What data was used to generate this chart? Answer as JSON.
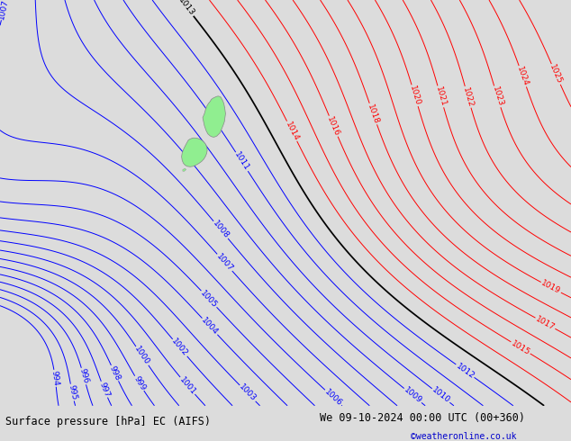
{
  "title_left": "Surface pressure [hPa] EC (AIFS)",
  "title_right": "We 09-10-2024 00:00 UTC (00+360)",
  "copyright": "©weatheronline.co.uk",
  "bg_color": "#dcdcdc",
  "fig_width": 6.34,
  "fig_height": 4.9,
  "dpi": 100,
  "bottom_bar_color": "#e8e8e8",
  "title_fontsize": 8.5,
  "copyright_color": "#0000cc",
  "red_contour_color": "#ff0000",
  "blue_contour_color": "#0000ff",
  "black_contour_color": "#000000",
  "land_color_low": "#00cc00",
  "land_color_high": "#ffff00",
  "sea_color": "#dcdcdc",
  "contour_lw": 0.7,
  "label_fontsize": 6.5,
  "nz_color": "#90ee90",
  "nz_edge": "#888888",
  "nz_lw": 0.5,
  "blue_levels": [
    994,
    995,
    996,
    997,
    998,
    999,
    1000,
    1001,
    1002,
    1003,
    1004,
    1005,
    1006,
    1007,
    1008,
    1009,
    1010,
    1011,
    1012
  ],
  "red_levels": [
    1014,
    1015,
    1016,
    1017,
    1018,
    1019,
    1020,
    1021,
    1022,
    1023,
    1024,
    1025
  ],
  "black_levels": [
    1013
  ],
  "nz_north_island": {
    "x": [
      0.355,
      0.358,
      0.36,
      0.362,
      0.365,
      0.368,
      0.37,
      0.373,
      0.376,
      0.379,
      0.382,
      0.385,
      0.387,
      0.388,
      0.39,
      0.392,
      0.393,
      0.394,
      0.395,
      0.394,
      0.393,
      0.391,
      0.389,
      0.387,
      0.385,
      0.382,
      0.38,
      0.377,
      0.374,
      0.371,
      0.368,
      0.364,
      0.361,
      0.358,
      0.355
    ],
    "y": [
      0.71,
      0.72,
      0.73,
      0.738,
      0.745,
      0.75,
      0.755,
      0.758,
      0.76,
      0.762,
      0.763,
      0.762,
      0.76,
      0.757,
      0.752,
      0.745,
      0.738,
      0.73,
      0.72,
      0.71,
      0.7,
      0.692,
      0.685,
      0.678,
      0.672,
      0.668,
      0.665,
      0.663,
      0.662,
      0.663,
      0.665,
      0.67,
      0.678,
      0.69,
      0.71
    ]
  },
  "nz_south_island": {
    "x": [
      0.33,
      0.334,
      0.338,
      0.342,
      0.346,
      0.35,
      0.354,
      0.357,
      0.36,
      0.362,
      0.363,
      0.362,
      0.36,
      0.357,
      0.353,
      0.348,
      0.343,
      0.338,
      0.333,
      0.328,
      0.324,
      0.321,
      0.319,
      0.318,
      0.319,
      0.322,
      0.326,
      0.33
    ],
    "y": [
      0.655,
      0.658,
      0.66,
      0.66,
      0.659,
      0.657,
      0.654,
      0.65,
      0.645,
      0.638,
      0.63,
      0.622,
      0.615,
      0.608,
      0.602,
      0.597,
      0.593,
      0.59,
      0.589,
      0.59,
      0.593,
      0.598,
      0.605,
      0.614,
      0.623,
      0.634,
      0.645,
      0.655
    ]
  },
  "nz_stewart": {
    "x": [
      0.32,
      0.323,
      0.326,
      0.324,
      0.32
    ],
    "y": [
      0.578,
      0.578,
      0.582,
      0.585,
      0.582
    ]
  }
}
